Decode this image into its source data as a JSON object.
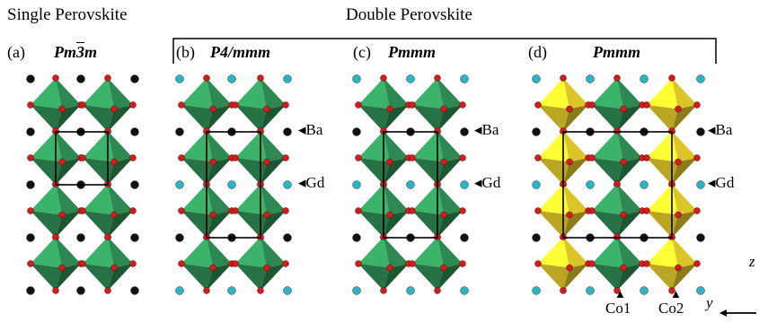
{
  "headings": {
    "single": "Single Perovskite",
    "double": "Double Perovskite"
  },
  "panels": [
    {
      "label": "(a)",
      "sg_pre": "Pm",
      "sg_bar": "3",
      "sg_post": "m"
    },
    {
      "label": "(b)",
      "sg": "P4/mmm"
    },
    {
      "label": "(c)",
      "sg": "Pmmm"
    },
    {
      "label": "(d)",
      "sg": "Pmmm"
    }
  ],
  "site_labels": {
    "ba": "Ba",
    "gd": "Gd",
    "co1": "Co1",
    "co2": "Co2"
  },
  "axes": {
    "z": "z",
    "y": "y"
  },
  "colors": {
    "octahedron_green": "#2f8f55",
    "octahedron_yellow": "#e8cf2a",
    "oxygen_red": "#cc1f1f",
    "ba_black": "#111111",
    "gd_cyan": "#2bb5c4",
    "orange_site": "#d9882a",
    "purple_site": "#5a3a9a"
  }
}
